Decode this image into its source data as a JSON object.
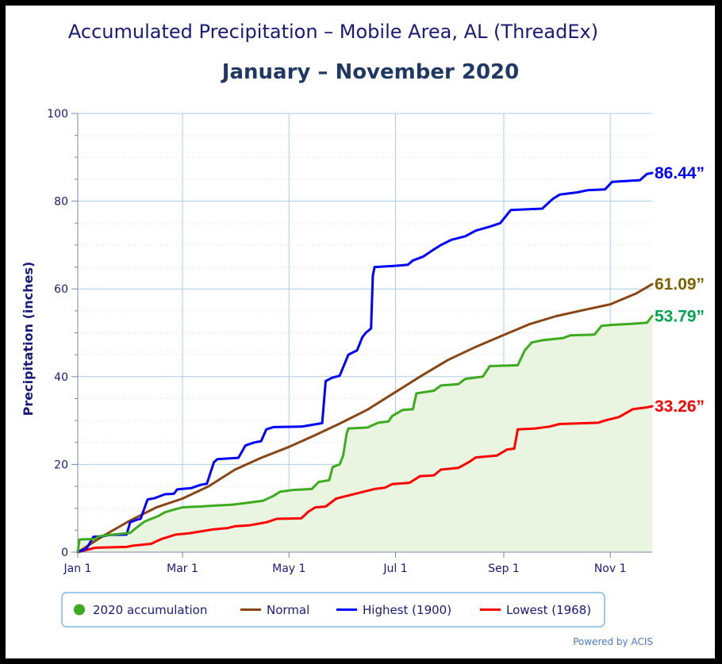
{
  "chart_data": {
    "type": "line",
    "title": "Accumulated Precipitation – Mobile Area, AL (ThreadEx)",
    "subtitle": "January – November 2020",
    "ylabel": "Precipitation (inches)",
    "xlabel": "",
    "ylim": [
      0,
      100
    ],
    "yticks": [
      "0",
      "20",
      "40",
      "60",
      "80",
      "100"
    ],
    "xlim": [
      0,
      329
    ],
    "xticks": [
      {
        "day": 0,
        "label": "Jan 1"
      },
      {
        "day": 60,
        "label": "Mar 1"
      },
      {
        "day": 121,
        "label": "May 1"
      },
      {
        "day": 182,
        "label": "Jul 1"
      },
      {
        "day": 244,
        "label": "Sep 1"
      },
      {
        "day": 305,
        "label": "Nov 1"
      }
    ],
    "grid": true,
    "legend_position": "bottom",
    "series": [
      {
        "name": "2020 accumulation",
        "color": "#3cab1e",
        "fill": "#e9f4e1",
        "end_label": "53.79”",
        "end_label_color": "#00a651",
        "points": [
          [
            0,
            0
          ],
          [
            1,
            2.9
          ],
          [
            10,
            3
          ],
          [
            12,
            3.6
          ],
          [
            18,
            3.9
          ],
          [
            25,
            4.2
          ],
          [
            30,
            4.4
          ],
          [
            35,
            6
          ],
          [
            38,
            6.9
          ],
          [
            42,
            7.6
          ],
          [
            46,
            8.2
          ],
          [
            50,
            9.1
          ],
          [
            56,
            9.8
          ],
          [
            60,
            10.2
          ],
          [
            64,
            10.3
          ],
          [
            70,
            10.4
          ],
          [
            78,
            10.6
          ],
          [
            88,
            10.8
          ],
          [
            96,
            11.2
          ],
          [
            106,
            11.7
          ],
          [
            112,
            12.8
          ],
          [
            116,
            13.8
          ],
          [
            124,
            14.2
          ],
          [
            134,
            14.4
          ],
          [
            138,
            16
          ],
          [
            144,
            16.4
          ],
          [
            146,
            19.4
          ],
          [
            150,
            20
          ],
          [
            152,
            22
          ],
          [
            154,
            27
          ],
          [
            155,
            28.2
          ],
          [
            166,
            28.4
          ],
          [
            172,
            29.5
          ],
          [
            178,
            29.8
          ],
          [
            180,
            31
          ],
          [
            186,
            32.4
          ],
          [
            192,
            32.6
          ],
          [
            194,
            36.2
          ],
          [
            204,
            36.8
          ],
          [
            208,
            38
          ],
          [
            218,
            38.3
          ],
          [
            222,
            39.5
          ],
          [
            232,
            40
          ],
          [
            236,
            42.4
          ],
          [
            252,
            42.6
          ],
          [
            256,
            46
          ],
          [
            260,
            47.8
          ],
          [
            266,
            48.3
          ],
          [
            278,
            48.8
          ],
          [
            282,
            49.4
          ],
          [
            296,
            49.6
          ],
          [
            300,
            51.6
          ],
          [
            306,
            51.8
          ],
          [
            316,
            52
          ],
          [
            326,
            52.3
          ],
          [
            329,
            53.79
          ]
        ]
      },
      {
        "name": "Normal",
        "color": "#8b4513",
        "end_label": "61.09”",
        "end_label_color": "#7f6000",
        "points": [
          [
            0,
            0
          ],
          [
            15,
            3.8
          ],
          [
            30,
            7.2
          ],
          [
            45,
            10.2
          ],
          [
            60,
            12.2
          ],
          [
            75,
            15
          ],
          [
            90,
            18.8
          ],
          [
            105,
            21.5
          ],
          [
            121,
            24
          ],
          [
            135,
            26.5
          ],
          [
            150,
            29.3
          ],
          [
            166,
            32.5
          ],
          [
            182,
            36.5
          ],
          [
            196,
            40
          ],
          [
            212,
            43.8
          ],
          [
            228,
            46.8
          ],
          [
            244,
            49.5
          ],
          [
            259,
            52
          ],
          [
            274,
            53.8
          ],
          [
            290,
            55.2
          ],
          [
            305,
            56.5
          ],
          [
            320,
            59
          ],
          [
            329,
            61.09
          ]
        ]
      },
      {
        "name": "Highest (1900)",
        "color": "#0000ff",
        "end_label": "86.44”",
        "end_label_color": "#0000ff",
        "points": [
          [
            0,
            0
          ],
          [
            5,
            0.8
          ],
          [
            9,
            3.5
          ],
          [
            14,
            3.6
          ],
          [
            18,
            3.9
          ],
          [
            28,
            4
          ],
          [
            30,
            6.8
          ],
          [
            34,
            7.4
          ],
          [
            36,
            7.6
          ],
          [
            40,
            12
          ],
          [
            44,
            12.3
          ],
          [
            50,
            13.2
          ],
          [
            55,
            13.3
          ],
          [
            57,
            14.3
          ],
          [
            65,
            14.6
          ],
          [
            70,
            15.3
          ],
          [
            74,
            15.6
          ],
          [
            78,
            20.5
          ],
          [
            80,
            21.2
          ],
          [
            92,
            21.5
          ],
          [
            96,
            24.3
          ],
          [
            101,
            25
          ],
          [
            105,
            25.3
          ],
          [
            108,
            28
          ],
          [
            112,
            28.5
          ],
          [
            128,
            28.6
          ],
          [
            134,
            29
          ],
          [
            140,
            29.4
          ],
          [
            142,
            39
          ],
          [
            146,
            39.8
          ],
          [
            150,
            40.2
          ],
          [
            155,
            45
          ],
          [
            160,
            46
          ],
          [
            163,
            49
          ],
          [
            165,
            50
          ],
          [
            168,
            51
          ],
          [
            169,
            63
          ],
          [
            170,
            65
          ],
          [
            180,
            65.2
          ],
          [
            189,
            65.5
          ],
          [
            192,
            66.5
          ],
          [
            198,
            67.4
          ],
          [
            204,
            69
          ],
          [
            208,
            70
          ],
          [
            214,
            71.2
          ],
          [
            222,
            72
          ],
          [
            228,
            73.3
          ],
          [
            236,
            74.2
          ],
          [
            242,
            75
          ],
          [
            248,
            78
          ],
          [
            266,
            78.3
          ],
          [
            272,
            80.5
          ],
          [
            276,
            81.5
          ],
          [
            286,
            82
          ],
          [
            292,
            82.5
          ],
          [
            302,
            82.7
          ],
          [
            306,
            84.4
          ],
          [
            322,
            84.8
          ],
          [
            326,
            86.2
          ],
          [
            329,
            86.44
          ]
        ]
      },
      {
        "name": "Lowest (1968)",
        "color": "#ff0000",
        "end_label": "33.26”",
        "end_label_color": "#ff0000",
        "points": [
          [
            0,
            0
          ],
          [
            10,
            1
          ],
          [
            28,
            1.2
          ],
          [
            32,
            1.5
          ],
          [
            42,
            1.9
          ],
          [
            48,
            3
          ],
          [
            56,
            4
          ],
          [
            64,
            4.3
          ],
          [
            70,
            4.7
          ],
          [
            78,
            5.2
          ],
          [
            86,
            5.5
          ],
          [
            90,
            5.9
          ],
          [
            98,
            6.1
          ],
          [
            108,
            6.8
          ],
          [
            114,
            7.6
          ],
          [
            128,
            7.7
          ],
          [
            132,
            9.2
          ],
          [
            136,
            10.2
          ],
          [
            142,
            10.4
          ],
          [
            148,
            12.2
          ],
          [
            156,
            13
          ],
          [
            164,
            13.8
          ],
          [
            170,
            14.4
          ],
          [
            176,
            14.7
          ],
          [
            180,
            15.5
          ],
          [
            190,
            15.8
          ],
          [
            196,
            17.3
          ],
          [
            204,
            17.5
          ],
          [
            208,
            18.8
          ],
          [
            218,
            19.2
          ],
          [
            224,
            20.5
          ],
          [
            228,
            21.6
          ],
          [
            240,
            22
          ],
          [
            246,
            23.4
          ],
          [
            250,
            23.6
          ],
          [
            252,
            28
          ],
          [
            262,
            28.2
          ],
          [
            270,
            28.6
          ],
          [
            276,
            29.2
          ],
          [
            298,
            29.5
          ],
          [
            302,
            30
          ],
          [
            310,
            30.8
          ],
          [
            318,
            32.6
          ],
          [
            326,
            33
          ],
          [
            329,
            33.26
          ]
        ]
      }
    ]
  },
  "legend": {
    "items": [
      {
        "label": "2020 accumulation",
        "color": "#3cab1e",
        "marker": "circle"
      },
      {
        "label": "Normal",
        "color": "#8b4513",
        "marker": "line"
      },
      {
        "label": "Highest (1900)",
        "color": "#0000ff",
        "marker": "line"
      },
      {
        "label": "Lowest (1968)",
        "color": "#ff0000",
        "marker": "line"
      }
    ]
  },
  "credit": "Powered by ACIS"
}
